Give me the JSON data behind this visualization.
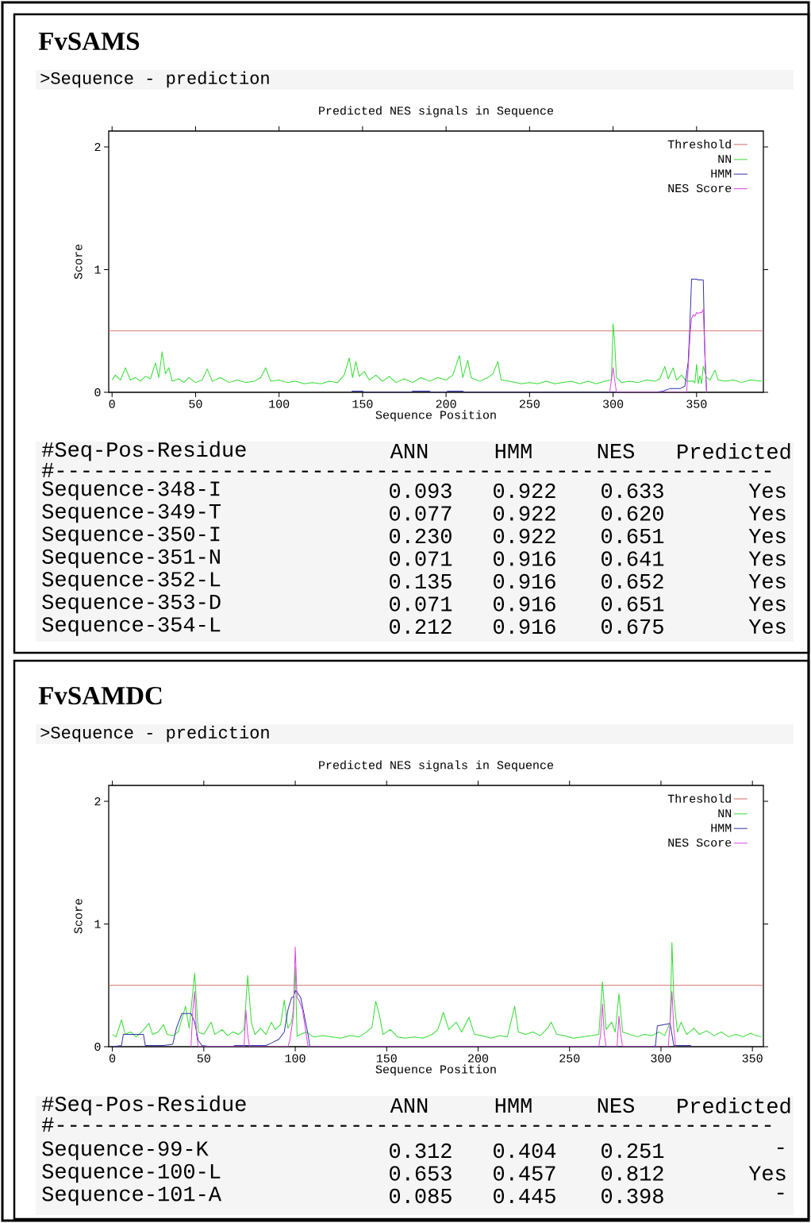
{
  "chart_data": [
    {
      "type": "line",
      "title": "FvSAMS",
      "subtitle": "Predicted NES signals in Sequence",
      "xlabel": "Sequence Position",
      "ylabel": "Score",
      "xlim": [
        -2,
        390
      ],
      "ylim": [
        0,
        2.13
      ],
      "xticks": [
        0,
        50,
        100,
        150,
        200,
        250,
        300,
        350
      ],
      "yticks": [
        0,
        1,
        2
      ],
      "legend": "top right",
      "ref_lines": [
        {
          "axis": "y",
          "value": 0.5,
          "label": "Threshold",
          "color": "#cc6666"
        }
      ],
      "series": [
        {
          "name": "NN",
          "color": "#33dd33",
          "x": [
            0,
            2,
            5,
            8,
            11,
            14,
            17,
            20,
            23,
            26,
            28,
            30,
            32,
            34,
            36,
            40,
            43,
            46,
            50,
            54,
            57,
            60,
            65,
            70,
            75,
            80,
            85,
            89,
            92,
            95,
            100,
            105,
            110,
            115,
            120,
            125,
            130,
            135,
            139,
            142,
            144,
            146,
            148,
            151,
            154,
            158,
            162,
            166,
            170,
            175,
            180,
            185,
            190,
            195,
            200,
            204,
            208,
            210,
            213,
            215,
            220,
            225,
            228,
            231,
            233,
            238,
            245,
            250,
            255,
            260,
            265,
            270,
            275,
            280,
            285,
            290,
            295,
            299,
            300,
            301,
            302,
            305,
            310,
            315,
            320,
            325,
            328,
            331,
            333,
            336,
            338,
            341,
            344,
            348,
            349,
            350,
            351,
            352,
            353,
            354,
            356,
            358,
            361,
            363,
            367,
            372,
            377,
            382,
            389
          ],
          "values": [
            0.1,
            0.14,
            0.1,
            0.2,
            0.1,
            0.12,
            0.09,
            0.13,
            0.11,
            0.24,
            0.12,
            0.33,
            0.15,
            0.2,
            0.09,
            0.11,
            0.08,
            0.12,
            0.08,
            0.1,
            0.19,
            0.09,
            0.12,
            0.08,
            0.1,
            0.08,
            0.09,
            0.12,
            0.2,
            0.09,
            0.1,
            0.08,
            0.09,
            0.07,
            0.08,
            0.07,
            0.09,
            0.08,
            0.14,
            0.28,
            0.12,
            0.25,
            0.13,
            0.17,
            0.1,
            0.14,
            0.09,
            0.13,
            0.08,
            0.11,
            0.08,
            0.12,
            0.09,
            0.12,
            0.1,
            0.14,
            0.3,
            0.12,
            0.26,
            0.12,
            0.09,
            0.12,
            0.15,
            0.25,
            0.1,
            0.09,
            0.07,
            0.08,
            0.07,
            0.09,
            0.07,
            0.08,
            0.09,
            0.07,
            0.09,
            0.07,
            0.09,
            0.1,
            0.56,
            0.4,
            0.12,
            0.08,
            0.09,
            0.08,
            0.1,
            0.09,
            0.11,
            0.21,
            0.11,
            0.2,
            0.1,
            0.14,
            0.09,
            0.093,
            0.077,
            0.23,
            0.071,
            0.135,
            0.071,
            0.212,
            0.12,
            0.1,
            0.18,
            0.1,
            0.09,
            0.1,
            0.08,
            0.1,
            0.09
          ]
        },
        {
          "name": "HMM",
          "color": "#3333aa",
          "x": [
            143,
            144,
            150,
            151,
            179,
            180,
            190,
            191,
            200,
            201,
            210,
            211,
            325,
            330,
            334,
            340,
            343,
            345,
            346,
            347,
            348,
            349,
            350,
            351,
            352,
            353,
            354,
            355,
            356
          ],
          "values": [
            0,
            0.01,
            0.01,
            0,
            0,
            0.01,
            0.01,
            0,
            0,
            0.01,
            0.01,
            0,
            0,
            0.01,
            0.03,
            0.03,
            0.05,
            0.25,
            0.55,
            0.922,
            0.922,
            0.922,
            0.922,
            0.916,
            0.916,
            0.916,
            0.916,
            0.3,
            0
          ]
        },
        {
          "name": "NES Score",
          "color": "#dd44dd",
          "x": [
            298,
            299,
            300,
            301,
            302,
            344,
            345,
            346,
            347,
            348,
            349,
            350,
            351,
            352,
            353,
            354,
            355,
            356
          ],
          "values": [
            0,
            0.1,
            0.2,
            0.1,
            0,
            0,
            0.2,
            0.45,
            0.6,
            0.633,
            0.62,
            0.651,
            0.641,
            0.652,
            0.651,
            0.675,
            0.3,
            0
          ]
        }
      ],
      "annotations": [
        ">Sequence - prediction",
        "#Seq-Pos-Residue",
        "ANN",
        "HMM",
        "NES",
        "Predicted",
        "#--------------------------------------------------------",
        "Sequence-348-I",
        "0.093",
        "0.922",
        "0.633",
        "Yes",
        "Sequence-349-T",
        "0.077",
        "0.922",
        "0.620",
        "Yes",
        "Sequence-350-I",
        "0.230",
        "0.922",
        "0.651",
        "Yes",
        "Sequence-351-N",
        "0.071",
        "0.916",
        "0.641",
        "Yes",
        "Sequence-352-L",
        "0.135",
        "0.916",
        "0.652",
        "Yes",
        "Sequence-353-D",
        "0.071",
        "0.916",
        "0.651",
        "Yes",
        "Sequence-354-L",
        "0.212",
        "0.916",
        "0.675",
        "Yes"
      ]
    },
    {
      "type": "line",
      "title": "FvSAMDC",
      "subtitle": "Predicted NES signals in Sequence",
      "xlabel": "Sequence Position",
      "ylabel": "Score",
      "xlim": [
        -2,
        356
      ],
      "ylim": [
        0,
        2.13
      ],
      "xticks": [
        0,
        50,
        100,
        150,
        200,
        250,
        300,
        350
      ],
      "yticks": [
        0,
        1,
        2
      ],
      "legend": "top right",
      "ref_lines": [
        {
          "axis": "y",
          "value": 0.5,
          "label": "Threshold",
          "color": "#cc6666"
        }
      ],
      "series": [
        {
          "name": "NN",
          "color": "#33dd33",
          "x": [
            0,
            2,
            5,
            7,
            10,
            13,
            16,
            20,
            22,
            25,
            28,
            30,
            33,
            36,
            40,
            42,
            45,
            47,
            50,
            54,
            56,
            60,
            63,
            66,
            69,
            72,
            74,
            76,
            78,
            81,
            84,
            87,
            89,
            92,
            94,
            96,
            98,
            99,
            100,
            101,
            103,
            106,
            110,
            115,
            120,
            125,
            130,
            135,
            139,
            142,
            144,
            146,
            148,
            152,
            156,
            160,
            165,
            170,
            175,
            178,
            181,
            184,
            188,
            191,
            195,
            198,
            202,
            207,
            212,
            216,
            220,
            222,
            226,
            230,
            234,
            238,
            240,
            243,
            247,
            252,
            257,
            262,
            266,
            268,
            270,
            273,
            275,
            277,
            279,
            283,
            287,
            291,
            295,
            299,
            302,
            305,
            306,
            307,
            309,
            311,
            314,
            318,
            321,
            325,
            329,
            333,
            337,
            341,
            345,
            349,
            352,
            355
          ],
          "values": [
            0.1,
            0.08,
            0.22,
            0.1,
            0.12,
            0.08,
            0.12,
            0.19,
            0.1,
            0.12,
            0.18,
            0.1,
            0.09,
            0.12,
            0.33,
            0.15,
            0.6,
            0.12,
            0.1,
            0.2,
            0.1,
            0.14,
            0.09,
            0.12,
            0.1,
            0.14,
            0.58,
            0.2,
            0.1,
            0.15,
            0.1,
            0.2,
            0.14,
            0.18,
            0.38,
            0.15,
            0.2,
            0.312,
            0.653,
            0.085,
            0.1,
            0.12,
            0.08,
            0.09,
            0.08,
            0.07,
            0.09,
            0.08,
            0.12,
            0.16,
            0.37,
            0.26,
            0.1,
            0.14,
            0.08,
            0.07,
            0.08,
            0.07,
            0.1,
            0.14,
            0.28,
            0.14,
            0.2,
            0.12,
            0.24,
            0.1,
            0.09,
            0.07,
            0.09,
            0.08,
            0.33,
            0.12,
            0.1,
            0.12,
            0.09,
            0.15,
            0.2,
            0.1,
            0.09,
            0.07,
            0.08,
            0.09,
            0.1,
            0.53,
            0.14,
            0.2,
            0.12,
            0.43,
            0.12,
            0.1,
            0.08,
            0.1,
            0.09,
            0.12,
            0.09,
            0.2,
            0.85,
            0.4,
            0.12,
            0.2,
            0.1,
            0.15,
            0.1,
            0.13,
            0.09,
            0.12,
            0.08,
            0.1,
            0.08,
            0.11,
            0.09,
            0.08
          ]
        },
        {
          "name": "HMM",
          "color": "#3333aa",
          "x": [
            0,
            5,
            6,
            17,
            18,
            28,
            33,
            35,
            38,
            43,
            45,
            47,
            49,
            54,
            66,
            67,
            84,
            87,
            91,
            94,
            96,
            98,
            99,
            100,
            101,
            103,
            105,
            107,
            108,
            296,
            297,
            298,
            305,
            307,
            316,
            317
          ],
          "values": [
            0,
            0.01,
            0.1,
            0.1,
            0.01,
            0.01,
            0.02,
            0.15,
            0.27,
            0.27,
            0.2,
            0.05,
            0.01,
            0,
            0,
            0.01,
            0.01,
            0.03,
            0.06,
            0.12,
            0.3,
            0.4,
            0.404,
            0.457,
            0.445,
            0.4,
            0.25,
            0.1,
            0,
            0,
            0.01,
            0.17,
            0.19,
            0.01,
            0.01,
            0
          ]
        },
        {
          "name": "NES Score",
          "color": "#dd44dd",
          "x": [
            43,
            44,
            45,
            46,
            47,
            72,
            73,
            74,
            75,
            96,
            97,
            98,
            99,
            100,
            101,
            102,
            104,
            106,
            107,
            266,
            267,
            268,
            269,
            270,
            276,
            277,
            278,
            279,
            304,
            305,
            306,
            307,
            308
          ],
          "values": [
            0,
            0.3,
            0.45,
            0.1,
            0,
            0,
            0.3,
            0.1,
            0,
            0,
            0.05,
            0.15,
            0.251,
            0.812,
            0.398,
            0.38,
            0.3,
            0.1,
            0,
            0,
            0.1,
            0.35,
            0.1,
            0,
            0,
            0.25,
            0.1,
            0,
            0,
            0.2,
            0.45,
            0.15,
            0
          ]
        }
      ],
      "annotations": [
        ">Sequence - prediction",
        "#Seq-Pos-Residue",
        "ANN",
        "HMM",
        "NES",
        "Predicted",
        "#--------------------------------------------------------",
        "Sequence-99-K",
        "0.312",
        "0.404",
        "0.251",
        "-",
        "Sequence-100-L",
        "0.653",
        "0.457",
        "0.812",
        "Yes",
        "Sequence-101-A",
        "0.085",
        "0.445",
        "0.398",
        "-"
      ]
    }
  ]
}
